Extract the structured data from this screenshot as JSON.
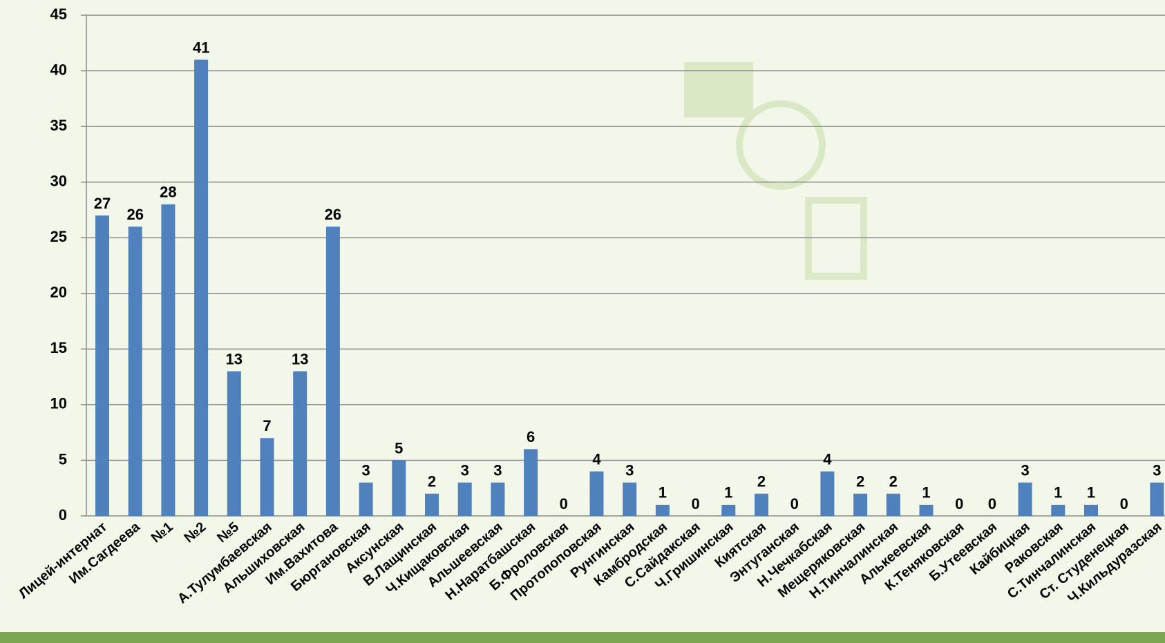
{
  "chart_data": {
    "type": "bar",
    "categories": [
      "Лицей-интернат",
      "Им.Сагдеева",
      "№1",
      "№2",
      "№5",
      "А.Тулумбаевская",
      "Альшиховская",
      "Им.Вахитова",
      "Бюргановская",
      "Аксунская",
      "В.Лащинская",
      "Ч.Кищаковская",
      "Альшеевская",
      "Н.Наратбашская",
      "Б.Фроловская",
      "Протопоповская",
      "Рунгинская",
      "Камбродская",
      "С.Сайдакская",
      "Ч.Гришинская",
      "Киятская",
      "Энтуганская",
      "Н.Чечкабская",
      "Мещеряковская",
      "Н.Тинчалинская",
      "Алькеевская",
      "К.Теняковская",
      "Б.Утеевская",
      "Кайбицкая",
      "Раковская",
      "С.Тинчалинская",
      "Ст. Студенецкая",
      "Ч.Кильдуразская"
    ],
    "values": [
      27,
      26,
      28,
      41,
      13,
      7,
      13,
      26,
      3,
      5,
      2,
      3,
      3,
      6,
      0,
      4,
      3,
      1,
      0,
      1,
      2,
      0,
      4,
      2,
      2,
      1,
      0,
      0,
      3,
      1,
      1,
      0,
      3
    ],
    "color": "#4f81bd",
    "ylim": [
      0,
      45
    ],
    "yticks": [
      0,
      5,
      10,
      15,
      20,
      25,
      30,
      35,
      40,
      45
    ],
    "grid": true
  }
}
